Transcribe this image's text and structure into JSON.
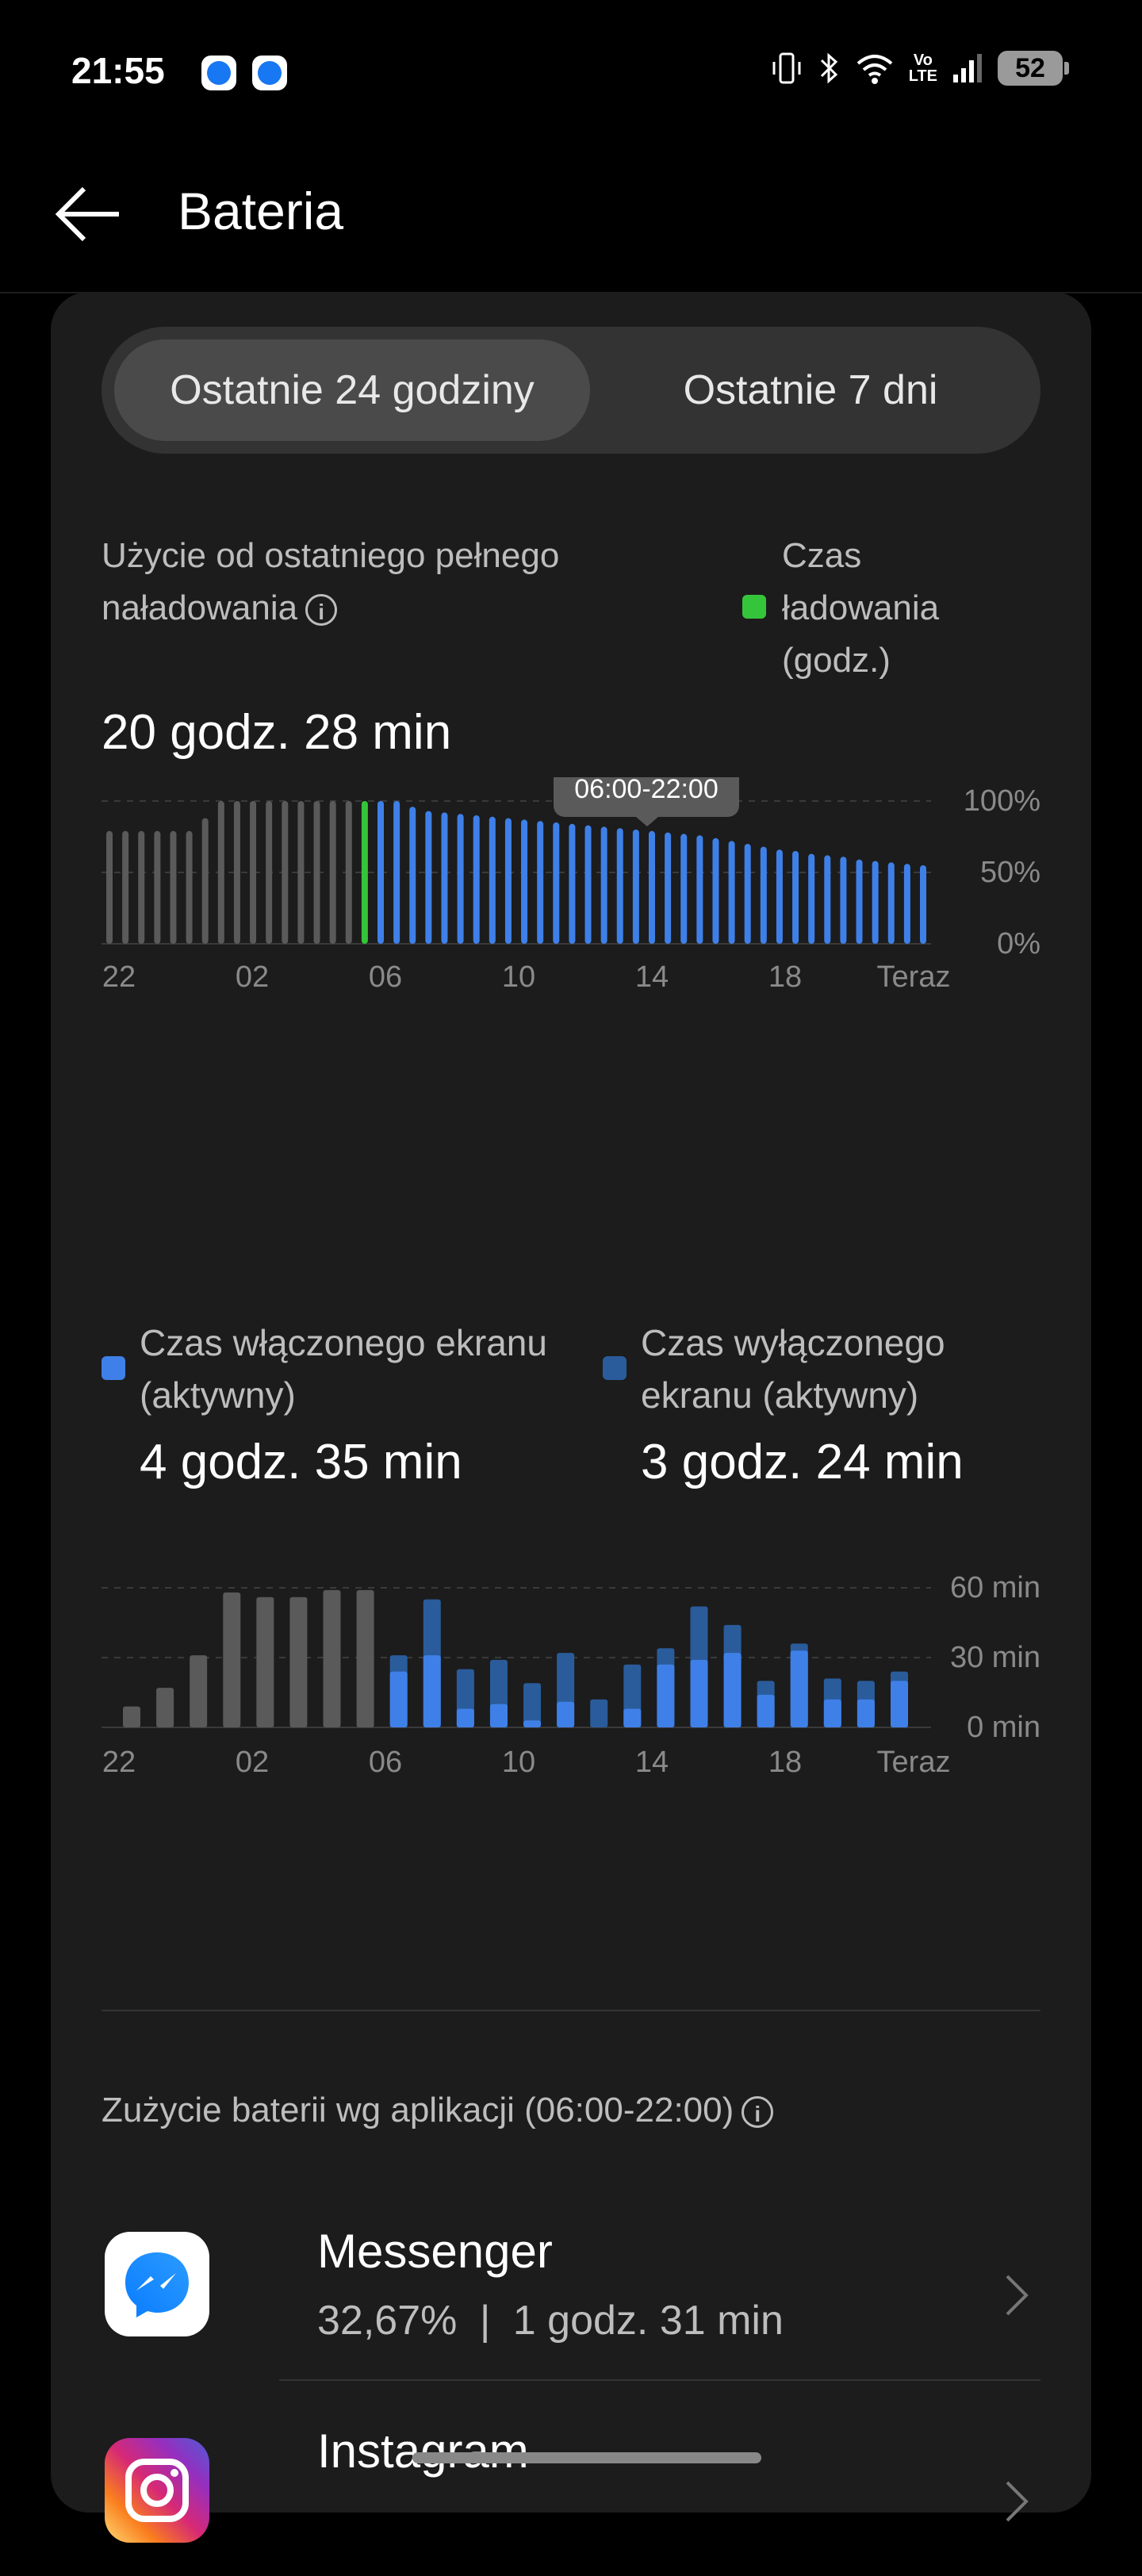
{
  "status_bar": {
    "time": "21:55",
    "battery_level": "52"
  },
  "header": {
    "title": "Bateria"
  },
  "tabs": {
    "active": "Ostatnie 24 godziny",
    "other": "Ostatnie 7 dni"
  },
  "usage": {
    "label": "Użycie od ostatniego pełnego naładowania",
    "value": "20 godz. 28 min",
    "charge_legend": "Czas ładowania (godz.)"
  },
  "screen": {
    "on_label": "Czas włączonego ekranu (aktywny)",
    "on_value": "4 godz. 35 min",
    "off_label": "Czas wyłączonego ekranu (aktywny)",
    "off_value": "3 godz. 24 min"
  },
  "apps_section": {
    "title": "Zużycie baterii wg aplikacji (06:00-22:00)"
  },
  "apps": [
    {
      "name": "Messenger",
      "percent": "32,67%",
      "separator": "|",
      "time": "1 godz. 31 min"
    },
    {
      "name": "Instagram"
    }
  ],
  "colors": {
    "accent_blue": "#3f80e8",
    "blue_dark": "#2a5c9b",
    "charging_green": "#35c53b",
    "inactive_gray": "#5a5a5a"
  },
  "chart_data": [
    {
      "type": "bar",
      "title": "",
      "tooltip": "06:00-22:00",
      "x_tick_labels": [
        "22",
        "02",
        "06",
        "10",
        "14",
        "18",
        "Teraz"
      ],
      "y_tick_labels": [
        "100%",
        "50%",
        "0%"
      ],
      "ylim": [
        0,
        100
      ],
      "grid": true,
      "values": [
        79,
        79,
        79,
        79,
        79,
        79,
        88,
        100,
        100,
        100,
        100,
        100,
        100,
        100,
        100,
        100,
        100,
        100,
        100,
        96,
        93,
        92,
        91,
        90,
        89,
        88,
        87,
        86,
        85,
        84,
        83,
        82,
        81,
        80,
        79,
        78,
        77,
        76,
        74,
        72,
        70,
        68,
        66,
        65,
        63,
        62,
        61,
        59,
        58,
        57,
        56,
        55
      ],
      "bar_colors": [
        "inactive",
        "inactive",
        "inactive",
        "inactive",
        "inactive",
        "inactive",
        "inactive",
        "inactive",
        "inactive",
        "inactive",
        "inactive",
        "inactive",
        "inactive",
        "inactive",
        "inactive",
        "inactive",
        "charging",
        "blue",
        "blue",
        "blue",
        "blue",
        "blue",
        "blue",
        "blue",
        "blue",
        "blue",
        "blue",
        "blue",
        "blue",
        "blue",
        "blue",
        "blue",
        "blue",
        "blue",
        "blue",
        "blue",
        "blue",
        "blue",
        "blue",
        "blue",
        "blue",
        "blue",
        "blue",
        "blue",
        "blue",
        "blue",
        "blue",
        "blue",
        "blue",
        "blue",
        "blue",
        "blue"
      ]
    },
    {
      "type": "bar",
      "title": "",
      "x_tick_labels": [
        "22",
        "02",
        "06",
        "10",
        "14",
        "18",
        "Teraz"
      ],
      "y_tick_labels": [
        "60 min",
        "30 min",
        "0 min"
      ],
      "ylim": [
        0,
        60
      ],
      "grid": true,
      "series": [
        {
          "values": [
            9,
            17,
            31,
            58,
            56,
            56,
            59,
            59,
            31,
            55,
            25,
            29,
            19,
            32,
            12,
            27,
            34,
            52,
            44,
            20,
            36,
            21,
            20,
            24
          ]
        },
        {
          "values": [
            0,
            0,
            0,
            0,
            0,
            0,
            0,
            0,
            24,
            31,
            8,
            10,
            3,
            11,
            0,
            8,
            27,
            29,
            32,
            14,
            33,
            12,
            12,
            20
          ]
        }
      ]
    }
  ]
}
